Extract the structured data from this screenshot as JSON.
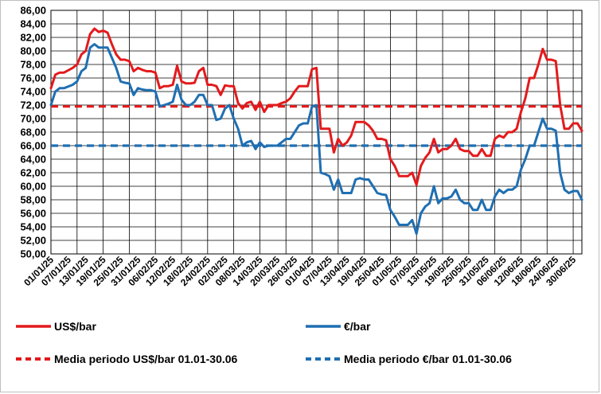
{
  "chart_data": {
    "type": "line",
    "title": "",
    "xlabel": "",
    "ylabel": "",
    "ylim": [
      50,
      86
    ],
    "y_ticks": [
      "50,00",
      "52,00",
      "54,00",
      "56,00",
      "58,00",
      "60,00",
      "62,00",
      "64,00",
      "66,00",
      "68,00",
      "70,00",
      "72,00",
      "74,00",
      "76,00",
      "78,00",
      "80,00",
      "82,00",
      "84,00",
      "86,00"
    ],
    "x_tick_labels": [
      "01/01/25",
      "07/01/25",
      "13/01/25",
      "19/01/25",
      "25/01/25",
      "31/01/25",
      "06/02/25",
      "12/02/25",
      "18/02/25",
      "24/02/25",
      "02/03/25",
      "08/03/25",
      "14/03/25",
      "20/03/25",
      "26/03/25",
      "01/04/25",
      "07/04/25",
      "13/04/25",
      "19/04/25",
      "25/04/25",
      "01/05/25",
      "07/05/25",
      "13/05/25",
      "19/05/25",
      "25/05/25",
      "31/05/25",
      "06/06/25",
      "12/06/25",
      "18/06/25",
      "24/06/25",
      "30/06/25"
    ],
    "grid": true,
    "legend_position": "bottom",
    "series": [
      {
        "name": "US$/bar",
        "color": "#e31a1c",
        "style": "solid",
        "points": [
          [
            0,
            74.5
          ],
          [
            1,
            76.5
          ],
          [
            2,
            76.8
          ],
          [
            3,
            76.8
          ],
          [
            5,
            77.5
          ],
          [
            6,
            78
          ],
          [
            7,
            79.5
          ],
          [
            8,
            80
          ],
          [
            9,
            82.5
          ],
          [
            10,
            83.3
          ],
          [
            11,
            82.8
          ],
          [
            12,
            83
          ],
          [
            13,
            82.7
          ],
          [
            14,
            81
          ],
          [
            15,
            79.5
          ],
          [
            16,
            78.7
          ],
          [
            17,
            78.7
          ],
          [
            18,
            78.5
          ],
          [
            19,
            77
          ],
          [
            20,
            77.5
          ],
          [
            21,
            77.2
          ],
          [
            22,
            77
          ],
          [
            23,
            77
          ],
          [
            24,
            76.8
          ],
          [
            25,
            74.5
          ],
          [
            26,
            74.8
          ],
          [
            27,
            74.8
          ],
          [
            28,
            75
          ],
          [
            29,
            77.8
          ],
          [
            30,
            75.5
          ],
          [
            31,
            75.2
          ],
          [
            32,
            75.2
          ],
          [
            33,
            75.3
          ],
          [
            34,
            77
          ],
          [
            35,
            77.5
          ],
          [
            36,
            75
          ],
          [
            37,
            75
          ],
          [
            38,
            74.8
          ],
          [
            39,
            73.5
          ],
          [
            40,
            74.9
          ],
          [
            41,
            74.8
          ],
          [
            42,
            74.8
          ],
          [
            43,
            72.3
          ],
          [
            44,
            71.5
          ],
          [
            45,
            72.3
          ],
          [
            46,
            72.5
          ],
          [
            47,
            71.3
          ],
          [
            48,
            72.5
          ],
          [
            49,
            71
          ],
          [
            50,
            72
          ],
          [
            51,
            72
          ],
          [
            52,
            72
          ],
          [
            53,
            72.3
          ],
          [
            54,
            72.5
          ],
          [
            55,
            73
          ],
          [
            56,
            74
          ],
          [
            57,
            74.8
          ],
          [
            58,
            74.8
          ],
          [
            59,
            74.8
          ],
          [
            60,
            77.3
          ],
          [
            61,
            77.5
          ],
          [
            62,
            68.5
          ],
          [
            63,
            68.5
          ],
          [
            64,
            68.5
          ],
          [
            65,
            65
          ],
          [
            66,
            67
          ],
          [
            67,
            66
          ],
          [
            68,
            66.5
          ],
          [
            69,
            67.5
          ],
          [
            70,
            69.5
          ],
          [
            71,
            69.5
          ],
          [
            72,
            69.5
          ],
          [
            73,
            69
          ],
          [
            74,
            68.2
          ],
          [
            75,
            67
          ],
          [
            76,
            67
          ],
          [
            77,
            66.8
          ],
          [
            78,
            64
          ],
          [
            79,
            63
          ],
          [
            80,
            61.5
          ],
          [
            81,
            61.5
          ],
          [
            82,
            61.5
          ],
          [
            83,
            62
          ],
          [
            84,
            60.2
          ],
          [
            85,
            63
          ],
          [
            86,
            64.2
          ],
          [
            87,
            65
          ],
          [
            88,
            67
          ],
          [
            89,
            65
          ],
          [
            90,
            65.5
          ],
          [
            91,
            65.5
          ],
          [
            92,
            66
          ],
          [
            93,
            67
          ],
          [
            94,
            65.5
          ],
          [
            95,
            65.2
          ],
          [
            96,
            65.2
          ],
          [
            97,
            64.5
          ],
          [
            98,
            64.5
          ],
          [
            99,
            65.5
          ],
          [
            100,
            64.5
          ],
          [
            101,
            64.5
          ],
          [
            102,
            67
          ],
          [
            103,
            67.5
          ],
          [
            104,
            67.2
          ],
          [
            105,
            68
          ],
          [
            106,
            68
          ],
          [
            107,
            68.5
          ],
          [
            108,
            71
          ],
          [
            109,
            73
          ],
          [
            110,
            76
          ],
          [
            111,
            76
          ],
          [
            112,
            78
          ],
          [
            113,
            80.3
          ],
          [
            114,
            78.7
          ],
          [
            115,
            78.7
          ],
          [
            116,
            78.5
          ],
          [
            117,
            72
          ],
          [
            118,
            68.5
          ],
          [
            119,
            68.5
          ],
          [
            120,
            69.3
          ],
          [
            121,
            69.3
          ],
          [
            122,
            68.2
          ]
        ]
      },
      {
        "name": "€/bar",
        "color": "#1f6fb2",
        "style": "solid",
        "points": [
          [
            0,
            72
          ],
          [
            1,
            74
          ],
          [
            2,
            74.5
          ],
          [
            3,
            74.5
          ],
          [
            5,
            75
          ],
          [
            6,
            75.5
          ],
          [
            7,
            77
          ],
          [
            8,
            77.5
          ],
          [
            9,
            80.5
          ],
          [
            10,
            81
          ],
          [
            11,
            80.5
          ],
          [
            12,
            80.5
          ],
          [
            13,
            80.5
          ],
          [
            14,
            79
          ],
          [
            15,
            77.5
          ],
          [
            16,
            75.5
          ],
          [
            17,
            75.3
          ],
          [
            18,
            75.2
          ],
          [
            19,
            73.5
          ],
          [
            20,
            74.5
          ],
          [
            21,
            74.3
          ],
          [
            22,
            74.2
          ],
          [
            23,
            74.2
          ],
          [
            24,
            74
          ],
          [
            25,
            71.8
          ],
          [
            26,
            72
          ],
          [
            27,
            72.2
          ],
          [
            28,
            72.5
          ],
          [
            29,
            75
          ],
          [
            30,
            72.8
          ],
          [
            31,
            72
          ],
          [
            32,
            72
          ],
          [
            33,
            72.5
          ],
          [
            34,
            73.5
          ],
          [
            35,
            73.5
          ],
          [
            36,
            72
          ],
          [
            37,
            72
          ],
          [
            38,
            69.8
          ],
          [
            39,
            70
          ],
          [
            40,
            71.5
          ],
          [
            41,
            72
          ],
          [
            42,
            70
          ],
          [
            43,
            68.5
          ],
          [
            44,
            66
          ],
          [
            45,
            66.5
          ],
          [
            46,
            66.7
          ],
          [
            47,
            65.5
          ],
          [
            48,
            66.5
          ],
          [
            49,
            65.8
          ],
          [
            50,
            66
          ],
          [
            51,
            66
          ],
          [
            52,
            66
          ],
          [
            53,
            66.5
          ],
          [
            54,
            67
          ],
          [
            55,
            67
          ],
          [
            56,
            68
          ],
          [
            57,
            69
          ],
          [
            58,
            69.3
          ],
          [
            59,
            69.3
          ],
          [
            60,
            71.8
          ],
          [
            61,
            72
          ],
          [
            62,
            62
          ],
          [
            63,
            61.8
          ],
          [
            64,
            61.5
          ],
          [
            65,
            59.5
          ],
          [
            66,
            61
          ],
          [
            67,
            59
          ],
          [
            68,
            59
          ],
          [
            69,
            59
          ],
          [
            70,
            61
          ],
          [
            71,
            61.2
          ],
          [
            72,
            61
          ],
          [
            73,
            61
          ],
          [
            74,
            60
          ],
          [
            75,
            59
          ],
          [
            76,
            58.8
          ],
          [
            77,
            58.7
          ],
          [
            78,
            56.5
          ],
          [
            79,
            55.5
          ],
          [
            80,
            54.3
          ],
          [
            81,
            54.3
          ],
          [
            82,
            54.3
          ],
          [
            83,
            55
          ],
          [
            84,
            53
          ],
          [
            85,
            56
          ],
          [
            86,
            57
          ],
          [
            87,
            57.5
          ],
          [
            88,
            60
          ],
          [
            89,
            57.5
          ],
          [
            90,
            58.2
          ],
          [
            91,
            58.2
          ],
          [
            92,
            58.5
          ],
          [
            93,
            59.5
          ],
          [
            94,
            58
          ],
          [
            95,
            57.5
          ],
          [
            96,
            57.5
          ],
          [
            97,
            56.5
          ],
          [
            98,
            56.5
          ],
          [
            99,
            58
          ],
          [
            100,
            56.5
          ],
          [
            101,
            56.5
          ],
          [
            102,
            58.5
          ],
          [
            103,
            59.5
          ],
          [
            104,
            59
          ],
          [
            105,
            59.5
          ],
          [
            106,
            59.5
          ],
          [
            107,
            60
          ],
          [
            108,
            62.5
          ],
          [
            109,
            64
          ],
          [
            110,
            66
          ],
          [
            111,
            66
          ],
          [
            112,
            68
          ],
          [
            113,
            70
          ],
          [
            114,
            68.5
          ],
          [
            115,
            68.5
          ],
          [
            116,
            68.2
          ],
          [
            117,
            62
          ],
          [
            118,
            59.5
          ],
          [
            119,
            59
          ],
          [
            120,
            59.3
          ],
          [
            121,
            59.3
          ],
          [
            122,
            58
          ]
        ]
      },
      {
        "name": "Media periodo US$/bar 01.01-30.06",
        "color": "#e31a1c",
        "style": "dashed",
        "points": [
          [
            0,
            71.8
          ],
          [
            122,
            71.8
          ]
        ]
      },
      {
        "name": "Media periodo €/bar 01.01-30.06",
        "color": "#1f6fb2",
        "style": "dashed",
        "points": [
          [
            0,
            66
          ],
          [
            122,
            66
          ]
        ]
      }
    ]
  }
}
